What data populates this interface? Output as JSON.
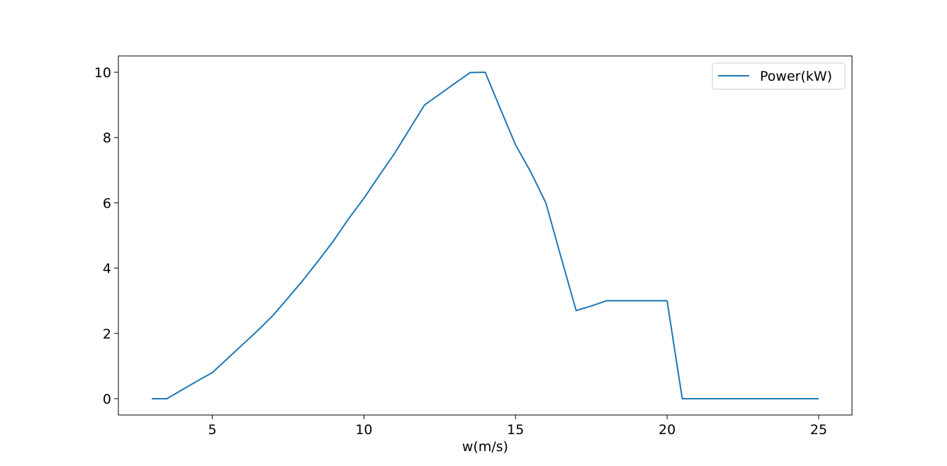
{
  "chart_data": {
    "type": "line",
    "title": "",
    "xlabel": "w(m/s)",
    "ylabel": "",
    "xlim": [
      1.9,
      26.1
    ],
    "ylim": [
      -0.5,
      10.5
    ],
    "xticks": [
      5,
      10,
      15,
      20,
      25
    ],
    "yticks": [
      0,
      2,
      4,
      6,
      8,
      10
    ],
    "grid": false,
    "legend_position": "top-right",
    "series": [
      {
        "name": "Power(kW)",
        "color": "#1f77b4",
        "x": [
          3,
          3.5,
          4,
          4.5,
          5,
          5.5,
          6,
          6.5,
          7,
          7.5,
          8,
          8.5,
          9,
          9.5,
          10,
          10.5,
          11,
          11.5,
          12,
          12.5,
          13,
          13.5,
          14,
          14.5,
          15,
          15.5,
          16,
          16.5,
          17,
          17.5,
          18,
          18.5,
          19,
          19.5,
          20,
          20.5,
          21,
          21.5,
          22,
          22.5,
          23,
          23.5,
          24,
          24.5,
          25
        ],
        "y": [
          0,
          0,
          0.27,
          0.54,
          0.8,
          1.23,
          1.66,
          2.09,
          2.55,
          3.09,
          3.64,
          4.23,
          4.84,
          5.52,
          6.14,
          6.83,
          7.5,
          8.25,
          9.0,
          9.33,
          9.66,
          9.99,
          10.0,
          8.88,
          7.78,
          6.95,
          6.0,
          4.34,
          2.7,
          2.84,
          3.0,
          3.0,
          3.0,
          3.0,
          3.0,
          0,
          0,
          0,
          0,
          0,
          0,
          0,
          0,
          0,
          0
        ]
      }
    ]
  }
}
